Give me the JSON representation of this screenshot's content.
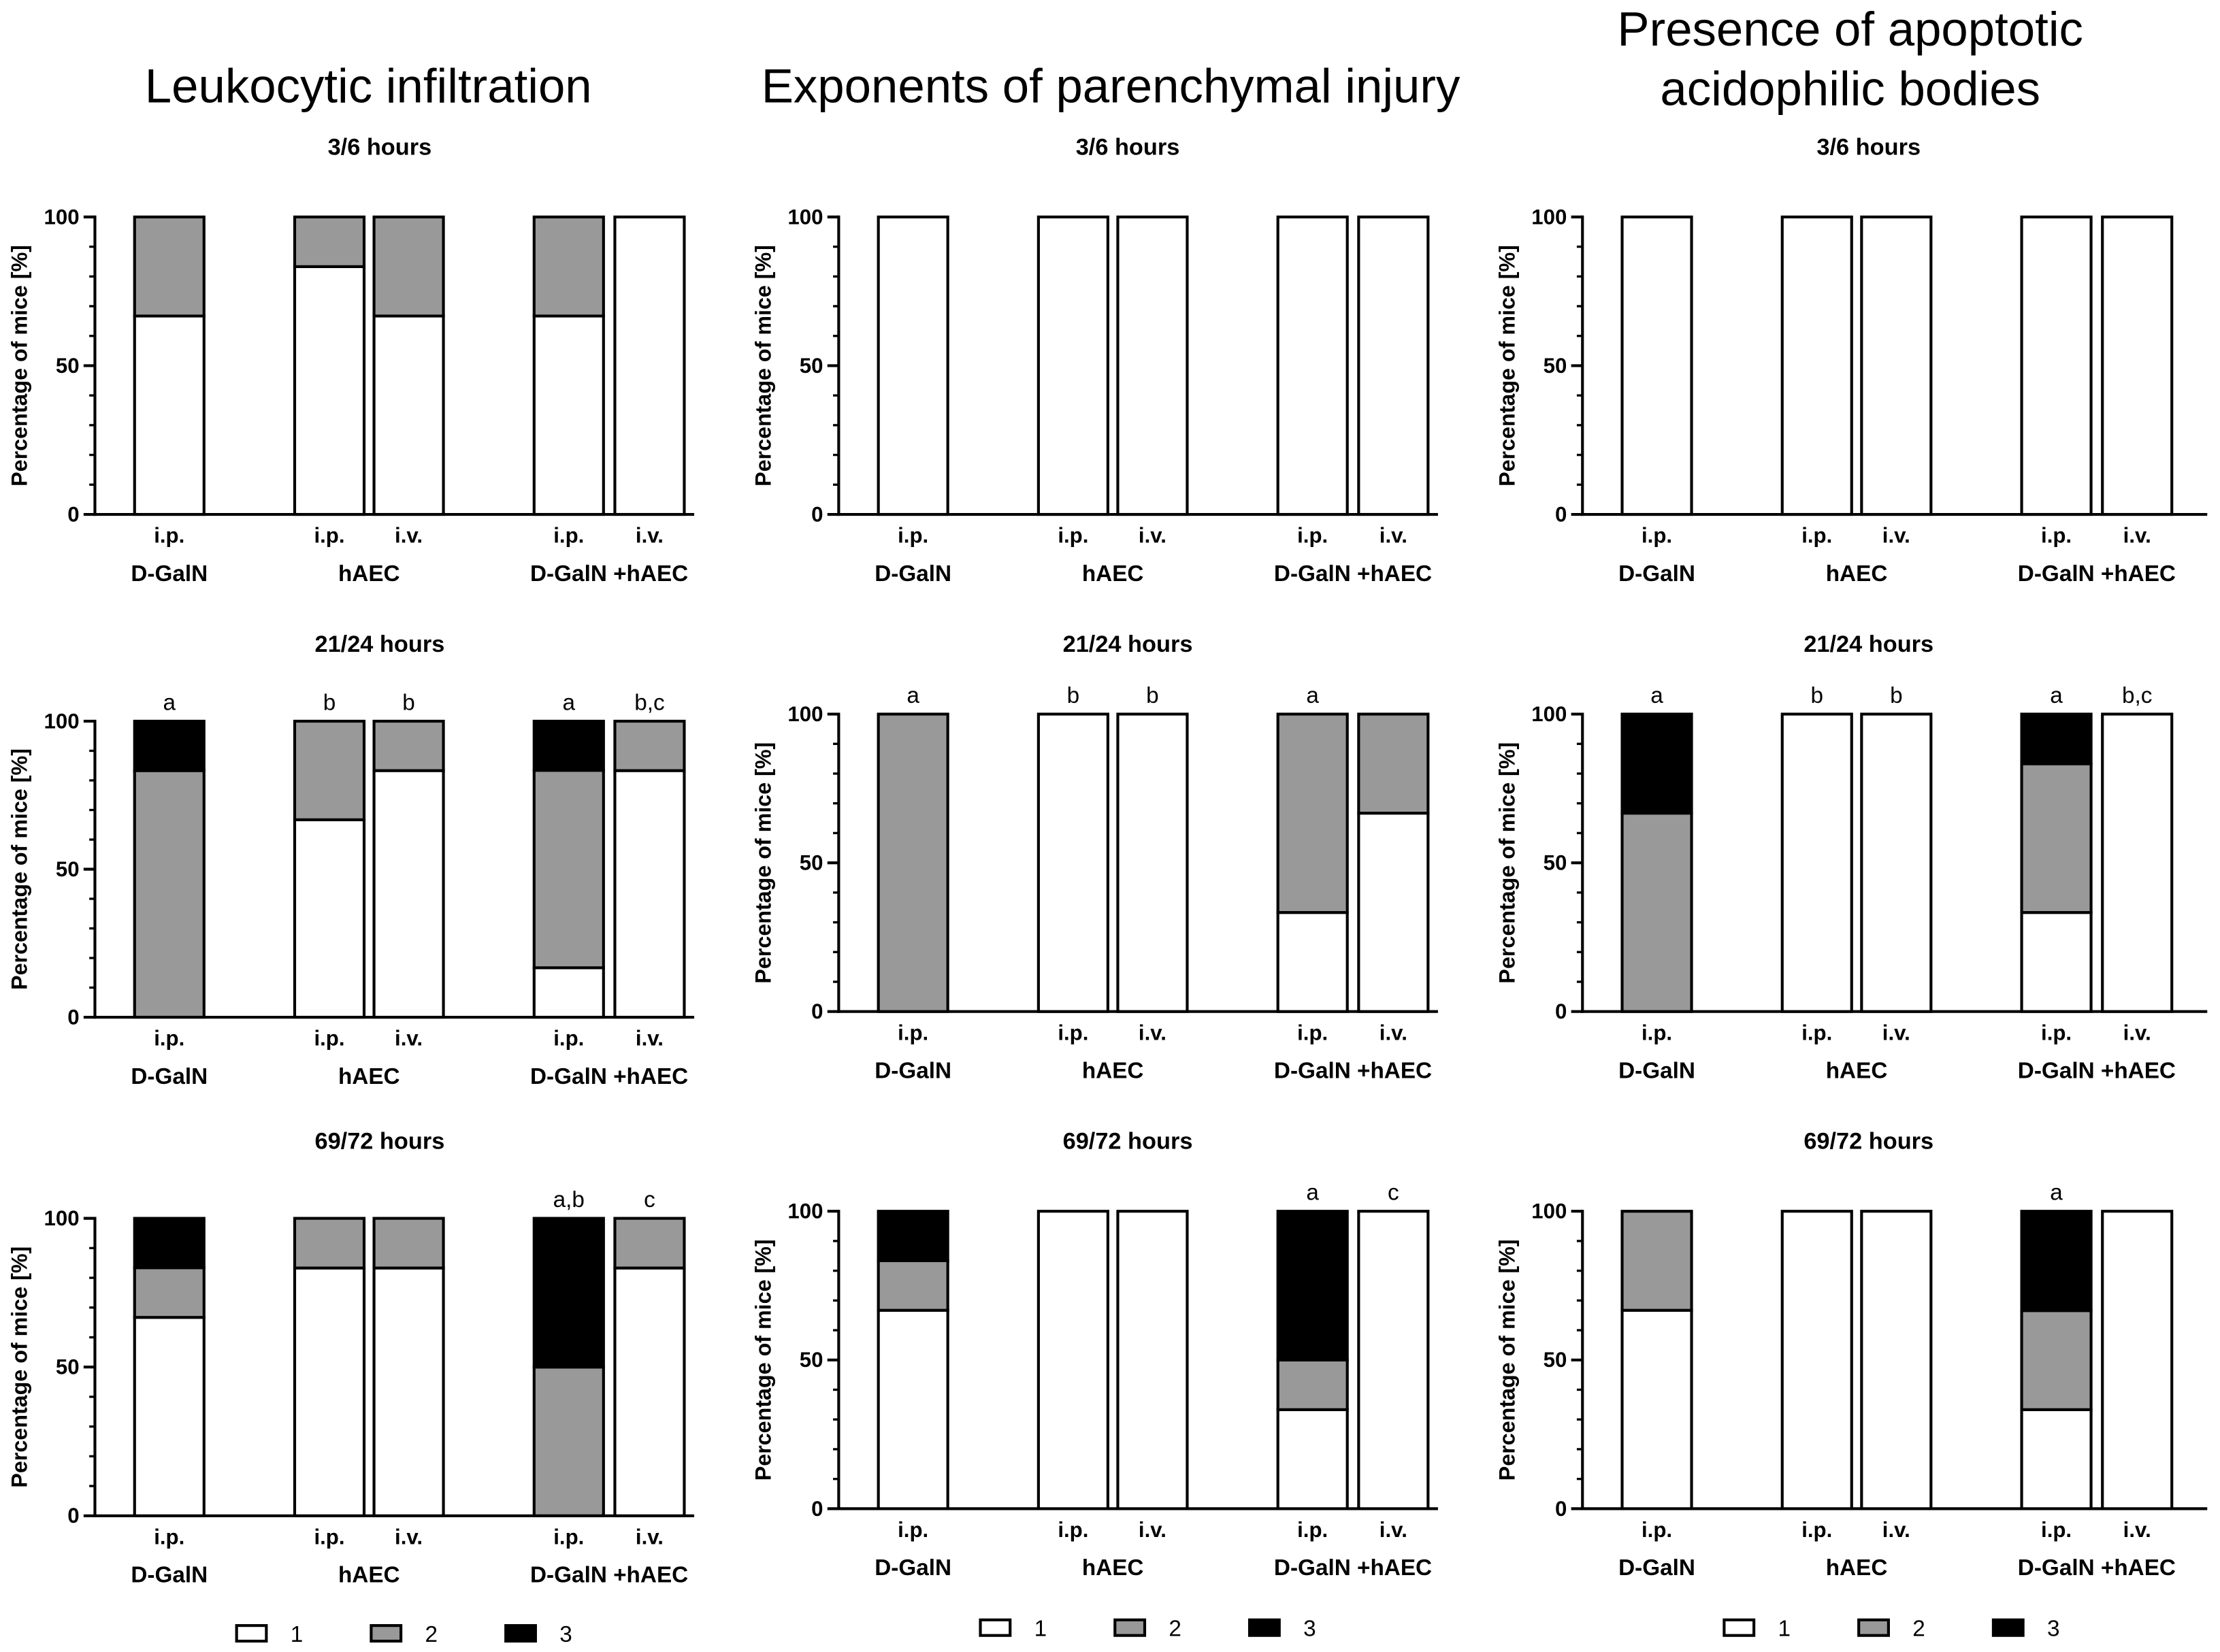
{
  "figure": {
    "column_titles": [
      [
        "Leukocytic infiltration"
      ],
      [
        "Exponents of parenchymal injury"
      ],
      [
        "Presence of apoptotic",
        "acidophilic bodies"
      ]
    ],
    "legend": [
      {
        "label": "1",
        "color": "#ffffff"
      },
      {
        "label": "2",
        "color": "#999999"
      },
      {
        "label": "3",
        "color": "#000000"
      }
    ],
    "outline_color": "#000000"
  },
  "chart_data": [
    {
      "type": "bar",
      "stacked": true,
      "title": "3/6 hours",
      "ylabel": "Percentage of mice [%]",
      "ylim": [
        0,
        100
      ],
      "yticks": [
        0,
        50,
        100
      ],
      "groups": [
        {
          "label": "D-GalN",
          "bars": [
            "i.p."
          ]
        },
        {
          "label": "hAEC",
          "bars": [
            "i.p.",
            "i.v."
          ]
        },
        {
          "label": "D-GalN +hAEC",
          "bars": [
            "i.p.",
            "i.v."
          ]
        }
      ],
      "series": [
        {
          "name": "1",
          "values": [
            66.7,
            83.3,
            66.7,
            66.7,
            100
          ]
        },
        {
          "name": "2",
          "values": [
            33.3,
            16.7,
            33.3,
            33.3,
            0
          ]
        },
        {
          "name": "3",
          "values": [
            0,
            0,
            0,
            0,
            0
          ]
        }
      ],
      "annotations": [
        null,
        null,
        null,
        null,
        null
      ]
    },
    {
      "type": "bar",
      "stacked": true,
      "title": "3/6 hours",
      "ylabel": "Percentage of mice [%]",
      "ylim": [
        0,
        100
      ],
      "yticks": [
        0,
        50,
        100
      ],
      "groups": [
        {
          "label": "D-GalN",
          "bars": [
            "i.p."
          ]
        },
        {
          "label": "hAEC",
          "bars": [
            "i.p.",
            "i.v."
          ]
        },
        {
          "label": "D-GalN +hAEC",
          "bars": [
            "i.p.",
            "i.v."
          ]
        }
      ],
      "series": [
        {
          "name": "1",
          "values": [
            100,
            100,
            100,
            100,
            100
          ]
        },
        {
          "name": "2",
          "values": [
            0,
            0,
            0,
            0,
            0
          ]
        },
        {
          "name": "3",
          "values": [
            0,
            0,
            0,
            0,
            0
          ]
        }
      ],
      "annotations": [
        null,
        null,
        null,
        null,
        null
      ]
    },
    {
      "type": "bar",
      "stacked": true,
      "title": "3/6 hours",
      "ylabel": "Percentage of mice [%]",
      "ylim": [
        0,
        100
      ],
      "yticks": [
        0,
        50,
        100
      ],
      "groups": [
        {
          "label": "D-GalN",
          "bars": [
            "i.p."
          ]
        },
        {
          "label": "hAEC",
          "bars": [
            "i.p.",
            "i.v."
          ]
        },
        {
          "label": "D-GalN +hAEC",
          "bars": [
            "i.p.",
            "i.v."
          ]
        }
      ],
      "series": [
        {
          "name": "1",
          "values": [
            100,
            100,
            100,
            100,
            100
          ]
        },
        {
          "name": "2",
          "values": [
            0,
            0,
            0,
            0,
            0
          ]
        },
        {
          "name": "3",
          "values": [
            0,
            0,
            0,
            0,
            0
          ]
        }
      ],
      "annotations": [
        null,
        null,
        null,
        null,
        null
      ]
    },
    {
      "type": "bar",
      "stacked": true,
      "title": "21/24 hours",
      "ylabel": "Percentage of mice [%]",
      "ylim": [
        0,
        100
      ],
      "yticks": [
        0,
        50,
        100
      ],
      "groups": [
        {
          "label": "D-GalN",
          "bars": [
            "i.p."
          ]
        },
        {
          "label": "hAEC",
          "bars": [
            "i.p.",
            "i.v."
          ]
        },
        {
          "label": "D-GalN +hAEC",
          "bars": [
            "i.p.",
            "i.v."
          ]
        }
      ],
      "series": [
        {
          "name": "1",
          "values": [
            0,
            66.7,
            83.3,
            16.7,
            83.3
          ]
        },
        {
          "name": "2",
          "values": [
            83.3,
            33.3,
            16.7,
            66.7,
            16.7
          ]
        },
        {
          "name": "3",
          "values": [
            16.7,
            0,
            0,
            16.6,
            0
          ]
        }
      ],
      "annotations": [
        "a",
        "b",
        "b",
        "a",
        "b,c"
      ]
    },
    {
      "type": "bar",
      "stacked": true,
      "title": "21/24 hours",
      "ylabel": "Percentage of mice [%]",
      "ylim": [
        0,
        100
      ],
      "yticks": [
        0,
        50,
        100
      ],
      "groups": [
        {
          "label": "D-GalN",
          "bars": [
            "i.p."
          ]
        },
        {
          "label": "hAEC",
          "bars": [
            "i.p.",
            "i.v."
          ]
        },
        {
          "label": "D-GalN +hAEC",
          "bars": [
            "i.p.",
            "i.v."
          ]
        }
      ],
      "series": [
        {
          "name": "1",
          "values": [
            0,
            100,
            100,
            33.3,
            66.7
          ]
        },
        {
          "name": "2",
          "values": [
            100,
            0,
            0,
            66.7,
            33.3
          ]
        },
        {
          "name": "3",
          "values": [
            0,
            0,
            0,
            0,
            0
          ]
        }
      ],
      "annotations": [
        "a",
        "b",
        "b",
        "a",
        null
      ]
    },
    {
      "type": "bar",
      "stacked": true,
      "title": "21/24 hours",
      "ylabel": "Percentage of mice [%]",
      "ylim": [
        0,
        100
      ],
      "yticks": [
        0,
        50,
        100
      ],
      "groups": [
        {
          "label": "D-GalN",
          "bars": [
            "i.p."
          ]
        },
        {
          "label": "hAEC",
          "bars": [
            "i.p.",
            "i.v."
          ]
        },
        {
          "label": "D-GalN +hAEC",
          "bars": [
            "i.p.",
            "i.v."
          ]
        }
      ],
      "series": [
        {
          "name": "1",
          "values": [
            0,
            100,
            100,
            33.3,
            100
          ]
        },
        {
          "name": "2",
          "values": [
            66.7,
            0,
            0,
            50,
            0
          ]
        },
        {
          "name": "3",
          "values": [
            33.3,
            0,
            0,
            16.7,
            0
          ]
        }
      ],
      "annotations": [
        "a",
        "b",
        "b",
        "a",
        "b,c"
      ]
    },
    {
      "type": "bar",
      "stacked": true,
      "title": "69/72 hours",
      "ylabel": "Percentage of mice [%]",
      "ylim": [
        0,
        100
      ],
      "yticks": [
        0,
        50,
        100
      ],
      "groups": [
        {
          "label": "D-GalN",
          "bars": [
            "i.p."
          ]
        },
        {
          "label": "hAEC",
          "bars": [
            "i.p.",
            "i.v."
          ]
        },
        {
          "label": "D-GalN +hAEC",
          "bars": [
            "i.p.",
            "i.v."
          ]
        }
      ],
      "series": [
        {
          "name": "1",
          "values": [
            66.7,
            83.3,
            83.3,
            0,
            83.3
          ]
        },
        {
          "name": "2",
          "values": [
            16.7,
            16.7,
            16.7,
            50,
            16.7
          ]
        },
        {
          "name": "3",
          "values": [
            16.6,
            0,
            0,
            50,
            0
          ]
        }
      ],
      "annotations": [
        null,
        null,
        null,
        "a,b",
        "c"
      ]
    },
    {
      "type": "bar",
      "stacked": true,
      "title": "69/72 hours",
      "ylabel": "Percentage of mice [%]",
      "ylim": [
        0,
        100
      ],
      "yticks": [
        0,
        50,
        100
      ],
      "groups": [
        {
          "label": "D-GalN",
          "bars": [
            "i.p."
          ]
        },
        {
          "label": "hAEC",
          "bars": [
            "i.p.",
            "i.v."
          ]
        },
        {
          "label": "D-GalN +hAEC",
          "bars": [
            "i.p.",
            "i.v."
          ]
        }
      ],
      "series": [
        {
          "name": "1",
          "values": [
            66.7,
            100,
            100,
            33.3,
            100
          ]
        },
        {
          "name": "2",
          "values": [
            16.7,
            0,
            0,
            16.7,
            0
          ]
        },
        {
          "name": "3",
          "values": [
            16.6,
            0,
            0,
            50,
            0
          ]
        }
      ],
      "annotations": [
        null,
        null,
        null,
        "a",
        "c"
      ]
    },
    {
      "type": "bar",
      "stacked": true,
      "title": "69/72 hours",
      "ylabel": "Percentage of mice [%]",
      "ylim": [
        0,
        100
      ],
      "yticks": [
        0,
        50,
        100
      ],
      "groups": [
        {
          "label": "D-GalN",
          "bars": [
            "i.p."
          ]
        },
        {
          "label": "hAEC",
          "bars": [
            "i.p.",
            "i.v."
          ]
        },
        {
          "label": "D-GalN +hAEC",
          "bars": [
            "i.p.",
            "i.v."
          ]
        }
      ],
      "series": [
        {
          "name": "1",
          "values": [
            66.7,
            100,
            100,
            33.3,
            100
          ]
        },
        {
          "name": "2",
          "values": [
            33.3,
            0,
            0,
            33.3,
            0
          ]
        },
        {
          "name": "3",
          "values": [
            0,
            0,
            0,
            33.4,
            0
          ]
        }
      ],
      "annotations": [
        null,
        null,
        null,
        "a",
        null
      ]
    }
  ]
}
